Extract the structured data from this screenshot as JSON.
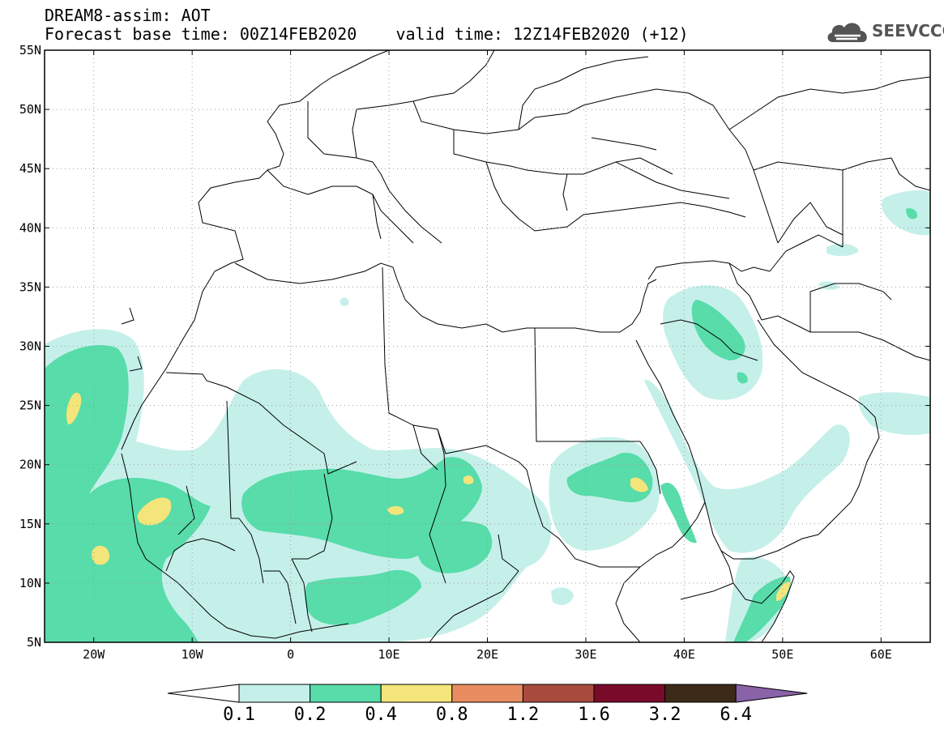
{
  "header": {
    "title_line_1": "DREAM8-assim: AOT",
    "title_line_2": "Forecast base time: 00Z14FEB2020    valid time: 12Z14FEB2020 (+12)",
    "logo_text": "SEEVCCC",
    "logo_icon": "cloud-logo-icon"
  },
  "map": {
    "lon_range": [
      -25,
      65
    ],
    "lat_range": [
      5,
      55
    ],
    "grid": "dotted",
    "x_ticks": [
      {
        "lon": -20,
        "label": "20W"
      },
      {
        "lon": -10,
        "label": "10W"
      },
      {
        "lon": 0,
        "label": "0"
      },
      {
        "lon": 10,
        "label": "10E"
      },
      {
        "lon": 20,
        "label": "20E"
      },
      {
        "lon": 30,
        "label": "30E"
      },
      {
        "lon": 40,
        "label": "40E"
      },
      {
        "lon": 50,
        "label": "50E"
      },
      {
        "lon": 60,
        "label": "60E"
      }
    ],
    "y_ticks": [
      {
        "lat": 55,
        "label": "55N"
      },
      {
        "lat": 50,
        "label": "50N"
      },
      {
        "lat": 45,
        "label": "45N"
      },
      {
        "lat": 40,
        "label": "40N"
      },
      {
        "lat": 35,
        "label": "35N"
      },
      {
        "lat": 30,
        "label": "30N"
      },
      {
        "lat": 25,
        "label": "25N"
      },
      {
        "lat": 20,
        "label": "20N"
      },
      {
        "lat": 15,
        "label": "15N"
      },
      {
        "lat": 10,
        "label": "10N"
      },
      {
        "lat": 5,
        "label": "5N"
      }
    ],
    "colors": {
      "level_0_1": "#c5f0ea",
      "level_0_2": "#57dcaa",
      "level_0_4": "#f4e57a",
      "border": "#000000",
      "grid": "#9a9a9a"
    }
  },
  "colorbar": {
    "labels": [
      "0.1",
      "0.2",
      "0.4",
      "0.8",
      "1.2",
      "1.6",
      "3.2",
      "6.4"
    ],
    "colors": [
      "#ffffff",
      "#c5f0ea",
      "#57dcaa",
      "#f4e57a",
      "#e88d62",
      "#a84a3e",
      "#7a0a2a",
      "#3c2a18",
      "#8a62a8"
    ]
  }
}
